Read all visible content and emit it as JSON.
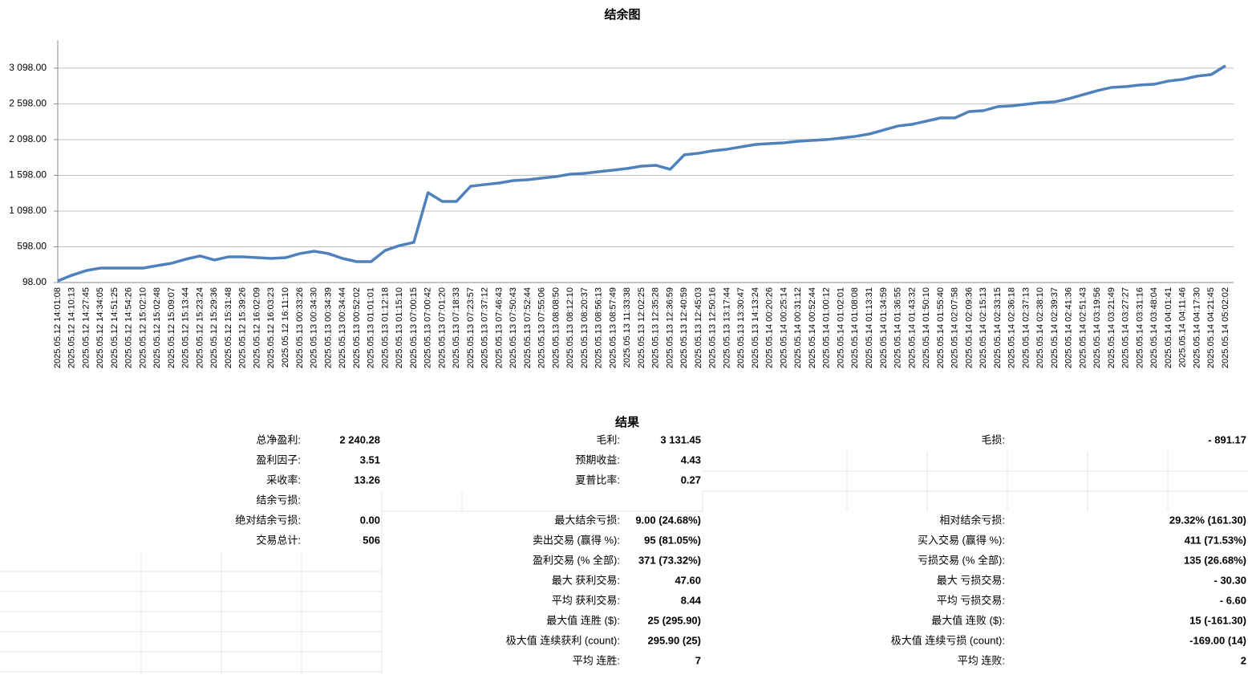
{
  "chart_data": {
    "type": "line",
    "title": "结余图",
    "categories": [
      "2025.05.12 14:01:08",
      "2025.05.12 14:10:13",
      "2025.05.12 14:27:45",
      "2025.05.12 14:34:05",
      "2025.05.12 14:51:25",
      "2025.05.12 14:54:26",
      "2025.05.12 15:02:10",
      "2025.05.12 15:02:48",
      "2025.05.12 15:09:07",
      "2025.05.12 15:13:44",
      "2025.05.12 15:23:24",
      "2025.05.12 15:29:36",
      "2025.05.12 15:31:48",
      "2025.05.12 15:39:26",
      "2025.05.12 16:02:09",
      "2025.05.12 16:03:23",
      "2025.05.12 16:11:10",
      "2025.05.13 00:33:26",
      "2025.05.13 00:34:30",
      "2025.05.13 00:34:39",
      "2025.05.13 00:34:44",
      "2025.05.13 00:52:02",
      "2025.05.13 01:01:01",
      "2025.05.13 01:12:18",
      "2025.05.13 01:15:10",
      "2025.05.13 07:00:15",
      "2025.05.13 07:00:42",
      "2025.05.13 07:01:20",
      "2025.05.13 07:18:33",
      "2025.05.13 07:23:57",
      "2025.05.13 07:37:12",
      "2025.05.13 07:46:43",
      "2025.05.13 07:50:43",
      "2025.05.13 07:52:44",
      "2025.05.13 07:55:06",
      "2025.05.13 08:08:50",
      "2025.05.13 08:12:10",
      "2025.05.13 08:20:37",
      "2025.05.13 08:56:13",
      "2025.05.13 08:57:49",
      "2025.05.13 11:33:38",
      "2025.05.13 12:02:25",
      "2025.05.13 12:35:28",
      "2025.05.13 12:36:59",
      "2025.05.13 12:40:59",
      "2025.05.13 12:45:03",
      "2025.05.13 12:50:16",
      "2025.05.13 13:17:44",
      "2025.05.13 13:30:47",
      "2025.05.13 14:13:24",
      "2025.05.14 00:20:26",
      "2025.05.14 00:25:14",
      "2025.05.14 00:31:12",
      "2025.05.14 00:52:44",
      "2025.05.14 01:00:12",
      "2025.05.14 01:02:01",
      "2025.05.14 01:08:08",
      "2025.05.14 01:13:31",
      "2025.05.14 01:34:59",
      "2025.05.14 01:36:55",
      "2025.05.14 01:43:32",
      "2025.05.14 01:50:10",
      "2025.05.14 01:55:40",
      "2025.05.14 02:07:58",
      "2025.05.14 02:09:36",
      "2025.05.14 02:15:13",
      "2025.05.14 02:33:15",
      "2025.05.14 02:36:18",
      "2025.05.14 02:37:13",
      "2025.05.14 02:38:10",
      "2025.05.14 02:39:37",
      "2025.05.14 02:41:36",
      "2025.05.14 02:51:43",
      "2025.05.14 03:19:56",
      "2025.05.14 03:21:49",
      "2025.05.14 03:27:27",
      "2025.05.14 03:31:16",
      "2025.05.14 03:48:04",
      "2025.05.14 04:01:41",
      "2025.05.14 04:11:46",
      "2025.05.14 04:17:30",
      "2025.05.14 04:21:45",
      "2025.05.14 05:02:02"
    ],
    "values": [
      120,
      200,
      265,
      300,
      300,
      300,
      300,
      335,
      368,
      425,
      470,
      413,
      458,
      458,
      446,
      435,
      446,
      503,
      536,
      503,
      435,
      390,
      390,
      548,
      615,
      660,
      1356,
      1233,
      1233,
      1446,
      1469,
      1491,
      1525,
      1536,
      1559,
      1581,
      1615,
      1626,
      1649,
      1671,
      1694,
      1727,
      1738,
      1682,
      1885,
      1907,
      1941,
      1963,
      1997,
      2030,
      2042,
      2053,
      2075,
      2087,
      2098,
      2120,
      2143,
      2177,
      2233,
      2289,
      2312,
      2357,
      2402,
      2402,
      2491,
      2503,
      2559,
      2570,
      2593,
      2615,
      2626,
      2671,
      2727,
      2783,
      2828,
      2840,
      2862,
      2873,
      2918,
      2941,
      2986,
      3008,
      3132
    ],
    "color": "#4f81bd",
    "ylim": [
      98,
      3490
    ],
    "yticks": [
      {
        "value": 98,
        "label": "98.00"
      },
      {
        "value": 598,
        "label": "598.00"
      },
      {
        "value": 1098,
        "label": "1 098.00"
      },
      {
        "value": 1598,
        "label": "1 598.00"
      },
      {
        "value": 2098,
        "label": "2 098.00"
      },
      {
        "value": 2598,
        "label": "2 598.00"
      },
      {
        "value": 3098,
        "label": "3 098.00"
      }
    ],
    "grid": true
  },
  "table": {
    "title": "结果",
    "rows": [
      [
        [
          "总净盈利:",
          "2 240.28"
        ],
        [
          "毛利:",
          "3 131.45"
        ],
        [
          "毛损:",
          "- 891.17"
        ]
      ],
      [
        [
          "盈利因子:",
          "3.51"
        ],
        [
          "预期收益:",
          "4.43"
        ],
        null
      ],
      [
        [
          "采收率:",
          "13.26"
        ],
        [
          "夏普比率:",
          "0.27"
        ],
        null
      ],
      [
        [
          "结余亏损:"
        ],
        null,
        null
      ],
      [
        [
          "绝对结余亏损:",
          "0.00"
        ],
        [
          "最大结余亏损:",
          "9.00 (24.68%)"
        ],
        [
          "相对结余亏损:",
          "29.32% (161.30)"
        ]
      ],
      [
        [
          "交易总计:",
          "506"
        ],
        [
          "卖出交易 (赢得 %):",
          "95 (81.05%)"
        ],
        [
          "买入交易 (赢得 %):",
          "411 (71.53%)"
        ]
      ],
      [
        null,
        [
          "盈利交易 (% 全部):",
          "371 (73.32%)"
        ],
        [
          "亏损交易 (% 全部):",
          "135 (26.68%)"
        ]
      ],
      [
        null,
        [
          "最大 获利交易:",
          "47.60"
        ],
        [
          "最大 亏损交易:",
          "- 30.30"
        ]
      ],
      [
        null,
        [
          "平均 获利交易:",
          "8.44"
        ],
        [
          "平均 亏损交易:",
          "- 6.60"
        ]
      ],
      [
        null,
        [
          "最大值 连胜 ($):",
          "25 (295.90)"
        ],
        [
          "最大值 连败 ($):",
          "15 (-161.30)"
        ]
      ],
      [
        null,
        [
          "极大值 连续获利 (count):",
          "295.90 (25)"
        ],
        [
          "极大值 连续亏损 (count):",
          "-169.00 (14)"
        ]
      ],
      [
        null,
        [
          "平均 连胜:",
          "7"
        ],
        [
          "平均 连败:",
          "2"
        ]
      ]
    ]
  }
}
